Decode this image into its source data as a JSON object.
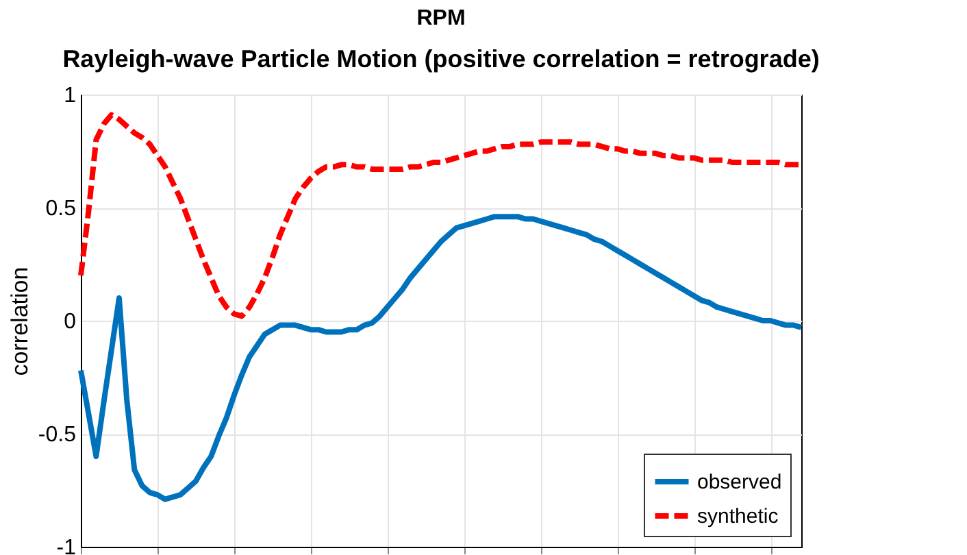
{
  "chart_data": {
    "type": "line",
    "title": "RPM",
    "subtitle": "Rayleigh-wave Particle Motion (positive correlation = retrograde)",
    "ylabel": "correlation",
    "categories": [
      null,
      null,
      null,
      null,
      null,
      null,
      null,
      null,
      null,
      null,
      null,
      null,
      null,
      null,
      null,
      null,
      null,
      null,
      null,
      null,
      null,
      null,
      null,
      null,
      null,
      null,
      null,
      null,
      null,
      null,
      null,
      null,
      null,
      null,
      null,
      null,
      null,
      null,
      null,
      null,
      null,
      null,
      null,
      null,
      null,
      null,
      null,
      null,
      null,
      null,
      null,
      null,
      null,
      null,
      null,
      null,
      null,
      null,
      null,
      null,
      null,
      null,
      null,
      null,
      null,
      null,
      null,
      null,
      null,
      null,
      null,
      null,
      null,
      null,
      null,
      null,
      null,
      null,
      null,
      null,
      null,
      null,
      null,
      null,
      null,
      null,
      null,
      null,
      null,
      null,
      null,
      null,
      null,
      null,
      null
    ],
    "ylim": [
      -1,
      1
    ],
    "yticks": [
      -1,
      -0.5,
      0,
      0.5,
      1
    ],
    "grid": true,
    "legend": "bottom right",
    "marker": "none",
    "series": [
      {
        "name": "observed",
        "color": "#0072bd",
        "line_style": "solid",
        "values": [
          -0.22,
          -0.41,
          -0.6,
          -0.36,
          -0.13,
          0.1,
          -0.35,
          -0.66,
          -0.73,
          -0.76,
          -0.77,
          -0.79,
          -0.78,
          -0.77,
          -0.74,
          -0.71,
          -0.65,
          -0.6,
          -0.51,
          -0.43,
          -0.33,
          -0.24,
          -0.16,
          -0.11,
          -0.06,
          -0.04,
          -0.02,
          -0.02,
          -0.02,
          -0.03,
          -0.04,
          -0.04,
          -0.05,
          -0.05,
          -0.05,
          -0.04,
          -0.04,
          -0.02,
          -0.01,
          0.02,
          0.06,
          0.1,
          0.14,
          0.19,
          0.23,
          0.27,
          0.31,
          0.35,
          0.38,
          0.41,
          0.42,
          0.43,
          0.44,
          0.45,
          0.46,
          0.46,
          0.46,
          0.46,
          0.45,
          0.45,
          0.44,
          0.43,
          0.42,
          0.41,
          0.4,
          0.39,
          0.38,
          0.36,
          0.35,
          0.33,
          0.31,
          0.29,
          0.27,
          0.25,
          0.23,
          0.21,
          0.19,
          0.17,
          0.15,
          0.13,
          0.11,
          0.09,
          0.08,
          0.06,
          0.05,
          0.04,
          0.03,
          0.02,
          0.01,
          0.0,
          0.0,
          -0.01,
          -0.02,
          -0.02,
          -0.03
        ]
      },
      {
        "name": "synthetic",
        "color": "#ff0000",
        "line_style": "dashed",
        "values": [
          0.2,
          0.48,
          0.8,
          0.87,
          0.91,
          0.89,
          0.86,
          0.83,
          0.81,
          0.78,
          0.73,
          0.68,
          0.61,
          0.54,
          0.45,
          0.36,
          0.27,
          0.19,
          0.11,
          0.06,
          0.03,
          0.02,
          0.06,
          0.12,
          0.19,
          0.28,
          0.38,
          0.46,
          0.54,
          0.59,
          0.63,
          0.66,
          0.68,
          0.68,
          0.69,
          0.69,
          0.68,
          0.68,
          0.67,
          0.67,
          0.67,
          0.67,
          0.67,
          0.68,
          0.68,
          0.69,
          0.7,
          0.7,
          0.71,
          0.72,
          0.73,
          0.74,
          0.75,
          0.75,
          0.76,
          0.77,
          0.77,
          0.78,
          0.78,
          0.78,
          0.79,
          0.79,
          0.79,
          0.79,
          0.79,
          0.78,
          0.78,
          0.78,
          0.77,
          0.76,
          0.76,
          0.75,
          0.75,
          0.74,
          0.74,
          0.74,
          0.73,
          0.73,
          0.72,
          0.72,
          0.72,
          0.71,
          0.71,
          0.71,
          0.71,
          0.7,
          0.7,
          0.7,
          0.7,
          0.7,
          0.7,
          0.7,
          0.69,
          0.69,
          0.69
        ]
      }
    ]
  }
}
